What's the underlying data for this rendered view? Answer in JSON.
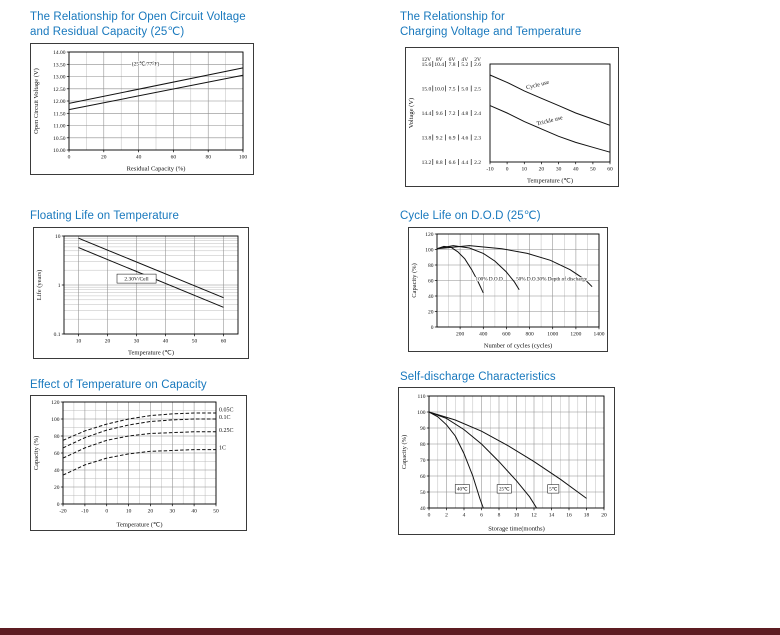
{
  "page": {
    "bg": "#ffffff",
    "title_color": "#1878bd",
    "footer_color": "#5d1c22"
  },
  "chart_data": [
    {
      "id": "ocv",
      "type": "line",
      "title_lines": [
        "The Relationship for Open Circuit Voltage",
        "and Residual Capacity (25℃)"
      ],
      "xlabel": "Residual Capacity (%)",
      "ylabel": "Open Circuit Voltage (V)",
      "xlim": [
        0,
        100
      ],
      "ylim": [
        10,
        14
      ],
      "x_ticks": [
        0,
        20,
        40,
        60,
        80,
        100
      ],
      "x_minor": [
        10,
        30,
        50,
        70,
        90
      ],
      "y_ticks": [
        10,
        10.5,
        11,
        11.5,
        12,
        12.5,
        13,
        13.5,
        14
      ],
      "y_tick_labels": [
        "10.00",
        "10.50",
        "11.00",
        "11.50",
        "12.00",
        "12.50",
        "13.00",
        "13.50",
        "14.00"
      ],
      "series": [
        {
          "name": "upper-line",
          "points": [
            [
              0,
              11.9
            ],
            [
              100,
              13.35
            ]
          ]
        },
        {
          "name": "lower-line",
          "points": [
            [
              0,
              11.65
            ],
            [
              100,
              13.05
            ]
          ]
        }
      ],
      "annotations": [
        {
          "text": "(25℃/77°F)",
          "x": 44,
          "y": 13.45,
          "size": 5.5
        }
      ]
    },
    {
      "id": "charge",
      "type": "line",
      "grid": false,
      "title_lines": [
        "The Relationship for",
        "Charging Voltage and Temperature"
      ],
      "xlabel": "Temperature (℃)",
      "ylabel": "Voltage (V)",
      "xlim": [
        -10,
        60
      ],
      "ylim": [
        2.2,
        2.6
      ],
      "x_ticks": [
        -10,
        0,
        10,
        20,
        30,
        40,
        50,
        60
      ],
      "y_axis_columns": {
        "headers": [
          "12V",
          "8V",
          "6V",
          "4V",
          "2V"
        ],
        "rows": [
          [
            "15.6",
            "10.4",
            "7.8",
            "5.2",
            "2.6"
          ],
          [
            "15.0",
            "10.0",
            "7.5",
            "5.0",
            "2.5"
          ],
          [
            "14.4",
            "9.6",
            "7.2",
            "4.8",
            "2.4"
          ],
          [
            "13.8",
            "9.2",
            "6.9",
            "4.6",
            "2.3"
          ],
          [
            "13.2",
            "8.8",
            "6.6",
            "4.4",
            "2.2"
          ]
        ]
      },
      "series": [
        {
          "name": "cycle-use",
          "points": [
            [
              -10,
              2.555
            ],
            [
              0,
              2.525
            ],
            [
              10,
              2.49
            ],
            [
              20,
              2.46
            ],
            [
              30,
              2.43
            ],
            [
              40,
              2.4
            ],
            [
              50,
              2.375
            ],
            [
              60,
              2.35
            ]
          ]
        },
        {
          "name": "trickle-use",
          "points": [
            [
              -10,
              2.43
            ],
            [
              0,
              2.4
            ],
            [
              10,
              2.365
            ],
            [
              20,
              2.335
            ],
            [
              30,
              2.305
            ],
            [
              40,
              2.28
            ],
            [
              50,
              2.26
            ],
            [
              60,
              2.24
            ]
          ]
        }
      ],
      "annotations": [
        {
          "text": "Cycle use",
          "x": 18,
          "y": 2.508,
          "rot": -14,
          "size": 6
        },
        {
          "text": "Trickle use",
          "x": 25,
          "y": 2.362,
          "rot": -14,
          "size": 6
        }
      ]
    },
    {
      "id": "float",
      "type": "line",
      "ylog": true,
      "title_lines": [
        "Floating Life on Temperature"
      ],
      "xlabel": "Temperature (℃)",
      "ylabel": "Life (years)",
      "xlim": [
        5,
        65
      ],
      "ylim": [
        0.1,
        10
      ],
      "x_ticks": [
        10,
        20,
        30,
        40,
        50,
        60
      ],
      "y_ticks": [
        0.1,
        1,
        10
      ],
      "y_tick_labels": [
        "0.1",
        "1",
        "10"
      ],
      "y_minor": [
        0.2,
        0.3,
        0.4,
        0.5,
        0.6,
        0.7,
        0.8,
        0.9,
        2,
        3,
        4,
        5,
        6,
        7,
        8,
        9
      ],
      "series": [
        {
          "name": "upper-line",
          "points": [
            [
              10,
              9
            ],
            [
              60,
              0.55
            ]
          ]
        },
        {
          "name": "lower-line",
          "points": [
            [
              10,
              5.8
            ],
            [
              60,
              0.35
            ]
          ]
        }
      ],
      "annotations": [
        {
          "text": "2.30V/Cell",
          "x": 30,
          "y": 1.35,
          "boxed": true,
          "size": 5.5
        }
      ]
    },
    {
      "id": "cycle",
      "type": "line",
      "title_lines": [
        "Cycle Life on D.O.D (25℃)"
      ],
      "xlabel": "Number of cycles (cycles)",
      "ylabel": "Capacity (%)",
      "xlim": [
        0,
        1400
      ],
      "ylim": [
        0,
        120
      ],
      "x_ticks": [
        200,
        400,
        600,
        800,
        1000,
        1200,
        1400
      ],
      "x_minor": [
        100,
        300,
        500,
        700,
        900,
        1100,
        1300
      ],
      "y_ticks": [
        0,
        20,
        40,
        60,
        80,
        100,
        120
      ],
      "series": [
        {
          "name": "dod-100",
          "points": [
            [
              0,
              101
            ],
            [
              60,
              104
            ],
            [
              120,
              103
            ],
            [
              180,
              97
            ],
            [
              240,
              88
            ],
            [
              300,
              74
            ],
            [
              350,
              60
            ],
            [
              400,
              44
            ]
          ]
        },
        {
          "name": "dod-50",
          "points": [
            [
              0,
              101
            ],
            [
              140,
              105
            ],
            [
              280,
              102
            ],
            [
              400,
              95
            ],
            [
              500,
              85
            ],
            [
              600,
              71
            ],
            [
              670,
              58
            ],
            [
              710,
              48
            ]
          ]
        },
        {
          "name": "dod-30",
          "points": [
            [
              0,
              101
            ],
            [
              280,
              105
            ],
            [
              560,
              101
            ],
            [
              780,
              95
            ],
            [
              980,
              86
            ],
            [
              1150,
              74
            ],
            [
              1280,
              61
            ],
            [
              1340,
              52
            ]
          ]
        }
      ],
      "annotations": [
        {
          "text": "100% D.O.D",
          "x": 450,
          "y": 60,
          "size": 5.2
        },
        {
          "text": "50% D.O.D",
          "x": 790,
          "y": 60,
          "size": 5.2
        },
        {
          "text": "30% Depth of discharge",
          "x": 1080,
          "y": 60,
          "size": 5.2
        }
      ]
    },
    {
      "id": "tempcap",
      "type": "line",
      "title_lines": [
        "Effect of Temperature on Capacity"
      ],
      "xlabel": "Temperature (℃)",
      "ylabel": "Capacity (%)",
      "xlim": [
        -20,
        50
      ],
      "ylim": [
        0,
        120
      ],
      "x_ticks": [
        -20,
        -10,
        0,
        10,
        20,
        30,
        40,
        50
      ],
      "x_minor": [
        -15,
        -5,
        5,
        15,
        25,
        35,
        45
      ],
      "y_ticks": [
        0,
        20,
        40,
        60,
        80,
        100,
        120
      ],
      "y_minor": [
        10,
        30,
        50,
        70,
        90,
        110
      ],
      "series": [
        {
          "name": "rate-0.05C",
          "dash": true,
          "points": [
            [
              -20,
              75
            ],
            [
              -10,
              86
            ],
            [
              0,
              94
            ],
            [
              10,
              100
            ],
            [
              20,
              104
            ],
            [
              30,
              106
            ],
            [
              40,
              107
            ],
            [
              50,
              107
            ]
          ]
        },
        {
          "name": "rate-0.1C",
          "dash": true,
          "points": [
            [
              -20,
              66
            ],
            [
              -10,
              78
            ],
            [
              0,
              87
            ],
            [
              10,
              93
            ],
            [
              20,
              97
            ],
            [
              30,
              99
            ],
            [
              40,
              100
            ],
            [
              50,
              100
            ]
          ]
        },
        {
          "name": "rate-0.25C",
          "dash": true,
          "points": [
            [
              -20,
              54
            ],
            [
              -10,
              66
            ],
            [
              0,
              75
            ],
            [
              10,
              80
            ],
            [
              20,
              83
            ],
            [
              30,
              84
            ],
            [
              40,
              85
            ],
            [
              50,
              85
            ]
          ]
        },
        {
          "name": "rate-1C",
          "dash": true,
          "points": [
            [
              -20,
              34
            ],
            [
              -10,
              46
            ],
            [
              0,
              54
            ],
            [
              10,
              59
            ],
            [
              20,
              62
            ],
            [
              30,
              63
            ],
            [
              40,
              64
            ],
            [
              50,
              64
            ]
          ]
        }
      ],
      "annotations": [
        {
          "text": "0.05C",
          "x": 50,
          "y": 109,
          "dx": 3,
          "anchor": "start",
          "size": 6
        },
        {
          "text": "0.1C",
          "x": 50,
          "y": 100,
          "dx": 3,
          "anchor": "start",
          "size": 6
        },
        {
          "text": "0.25C",
          "x": 50,
          "y": 85,
          "dx": 3,
          "anchor": "start",
          "size": 6
        },
        {
          "text": "1C",
          "x": 50,
          "y": 64,
          "dx": 3,
          "anchor": "start",
          "size": 6
        }
      ]
    },
    {
      "id": "selfdis",
      "type": "line",
      "title_lines": [
        "Self-discharge Characteristics"
      ],
      "xlabel": "Storage time(months)",
      "ylabel": "Capacity (%)",
      "xlim": [
        0,
        20
      ],
      "ylim": [
        40,
        110
      ],
      "x_ticks": [
        0,
        2,
        4,
        6,
        8,
        10,
        12,
        14,
        16,
        18,
        20
      ],
      "x_minor": [
        1,
        3,
        5,
        7,
        9,
        11,
        13,
        15,
        17,
        19
      ],
      "y_ticks": [
        40,
        50,
        60,
        70,
        80,
        90,
        100,
        110
      ],
      "series": [
        {
          "name": "temp-40c",
          "points": [
            [
              0,
              100
            ],
            [
              1,
              97
            ],
            [
              2,
              92
            ],
            [
              3,
              85
            ],
            [
              4,
              74
            ],
            [
              5,
              60
            ],
            [
              5.8,
              46
            ],
            [
              6.2,
              40
            ]
          ]
        },
        {
          "name": "temp-25c",
          "points": [
            [
              0,
              100
            ],
            [
              2,
              96
            ],
            [
              4,
              89
            ],
            [
              6,
              80
            ],
            [
              8,
              69
            ],
            [
              10,
              57
            ],
            [
              11.5,
              47
            ],
            [
              12.3,
              40
            ]
          ]
        },
        {
          "name": "temp-5c",
          "points": [
            [
              0,
              100
            ],
            [
              3,
              95
            ],
            [
              6,
              88
            ],
            [
              9,
              79
            ],
            [
              12,
              69
            ],
            [
              15,
              58
            ],
            [
              17,
              50
            ],
            [
              18,
              46
            ]
          ]
        }
      ],
      "annotations": [
        {
          "text": "40℃",
          "x": 3.8,
          "y": 52,
          "boxed": true,
          "size": 5
        },
        {
          "text": "25℃",
          "x": 8.6,
          "y": 52,
          "boxed": true,
          "size": 5
        },
        {
          "text": "5℃",
          "x": 14.2,
          "y": 52,
          "boxed": true,
          "size": 5
        }
      ]
    }
  ]
}
